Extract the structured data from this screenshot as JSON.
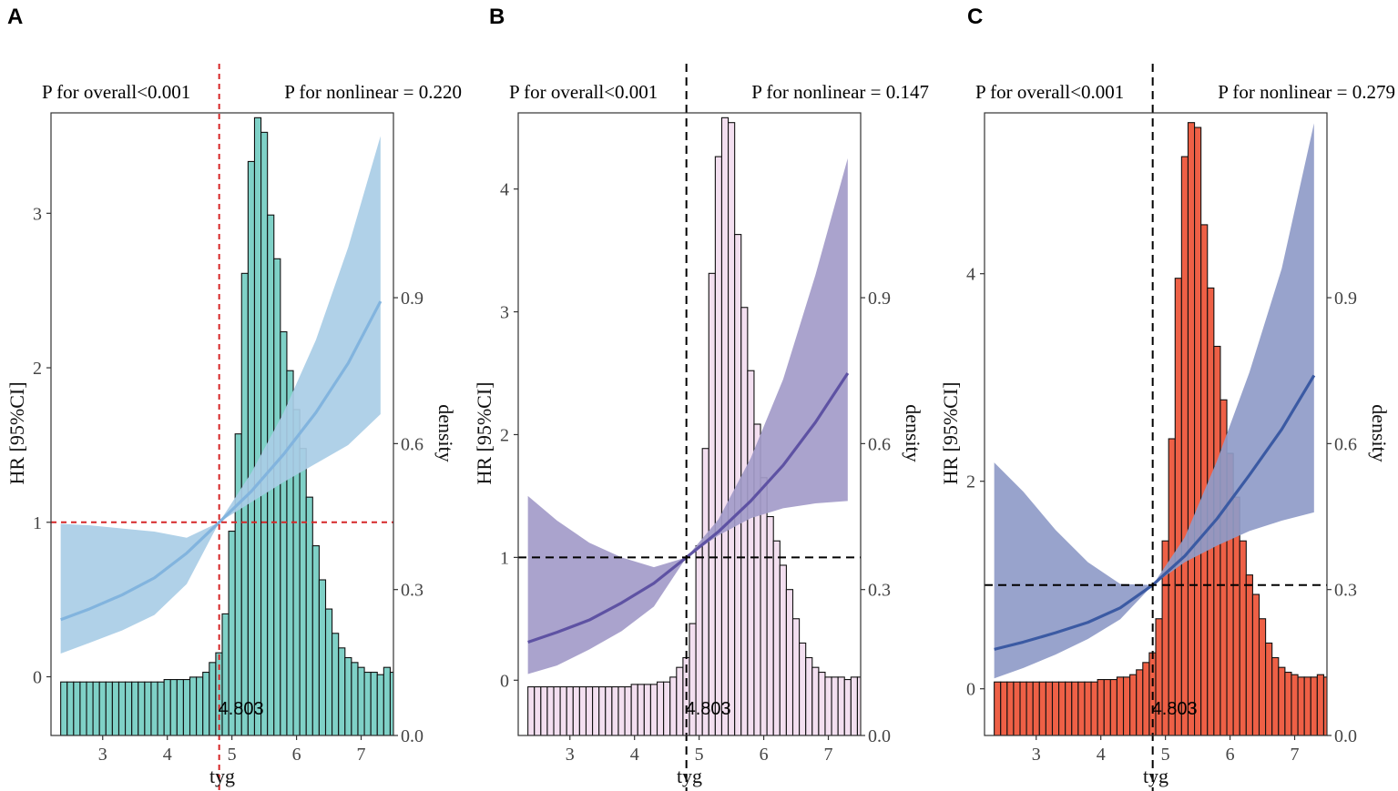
{
  "figure": {
    "shared": {
      "xlabel": "tyg",
      "ylabel": "HR [95%CI]",
      "y2label": "density",
      "x_ticks": [
        3,
        4,
        5,
        6,
        7
      ],
      "x_tick_labels": [
        "3",
        "4",
        "5",
        "6",
        "7"
      ],
      "density_ticks": [
        0.0,
        0.3,
        0.6,
        0.9
      ],
      "density_tick_labels": [
        "0.0",
        "0.3",
        "0.6",
        "0.9"
      ],
      "ref_x": 4.803,
      "ref_x_label": "4.803",
      "ref_hr": 1,
      "xlim": [
        2.2,
        7.5
      ]
    }
  },
  "chart_data": [
    {
      "type": "line",
      "panel": "A",
      "p_overall": "P for overall<0.001",
      "p_nonlinear": "P for nonlinear = 0.220",
      "ylim": [
        -0.38,
        3.65
      ],
      "y_ticks": [
        0,
        1,
        2,
        3
      ],
      "y_tick_labels": [
        "0",
        "1",
        "2",
        "3"
      ],
      "density_ylim": [
        0.0,
        1.28
      ],
      "colors": {
        "hist_fill": "#7fd1c7",
        "band": "#a9cde6",
        "line": "#82b4de",
        "ref": "#d62728"
      },
      "ref_dash": "6,5",
      "hist_x0": 2.35,
      "hist_bin": 0.1,
      "hist_density": [
        0.11,
        0.11,
        0.11,
        0.11,
        0.11,
        0.11,
        0.11,
        0.11,
        0.11,
        0.11,
        0.11,
        0.11,
        0.11,
        0.11,
        0.11,
        0.11,
        0.115,
        0.115,
        0.115,
        0.115,
        0.12,
        0.12,
        0.13,
        0.15,
        0.17,
        0.25,
        0.42,
        0.62,
        0.95,
        1.18,
        1.27,
        1.24,
        1.07,
        0.98,
        0.83,
        0.75,
        0.67,
        0.59,
        0.49,
        0.39,
        0.32,
        0.26,
        0.21,
        0.18,
        0.16,
        0.15,
        0.14,
        0.13,
        0.13,
        0.125,
        0.14,
        0.13,
        0.125,
        0.12,
        0.12,
        0.12,
        0.12,
        0.12,
        0.12,
        0.12,
        0.12
      ],
      "curve": {
        "x": [
          2.35,
          2.8,
          3.3,
          3.8,
          4.3,
          4.803,
          5.3,
          5.8,
          6.3,
          6.8,
          7.3
        ],
        "hr": [
          0.37,
          0.44,
          0.53,
          0.64,
          0.8,
          1.0,
          1.2,
          1.44,
          1.71,
          2.03,
          2.43
        ],
        "lower": [
          0.15,
          0.22,
          0.3,
          0.4,
          0.6,
          1.0,
          1.13,
          1.26,
          1.38,
          1.5,
          1.7
        ],
        "upper": [
          0.99,
          0.98,
          0.96,
          0.94,
          0.9,
          1.0,
          1.32,
          1.71,
          2.18,
          2.78,
          3.5
        ]
      }
    },
    {
      "type": "line",
      "panel": "B",
      "p_overall": "P for overall<0.001",
      "p_nonlinear": "P for nonlinear = 0.147",
      "ylim": [
        -0.45,
        4.62
      ],
      "y_ticks": [
        0,
        1,
        2,
        3,
        4
      ],
      "y_tick_labels": [
        "0",
        "1",
        "2",
        "3",
        "4"
      ],
      "density_ylim": [
        0.0,
        1.28
      ],
      "colors": {
        "hist_fill": "#f3dff0",
        "band": "#a39bc9",
        "line": "#5e52a3",
        "ref": "#000000"
      },
      "ref_dash": "9,6",
      "hist_x0": 2.35,
      "hist_bin": 0.1,
      "hist_density": [
        0.1,
        0.1,
        0.1,
        0.1,
        0.1,
        0.1,
        0.1,
        0.1,
        0.1,
        0.1,
        0.1,
        0.1,
        0.1,
        0.1,
        0.1,
        0.1,
        0.105,
        0.105,
        0.105,
        0.105,
        0.11,
        0.11,
        0.12,
        0.14,
        0.16,
        0.23,
        0.39,
        0.59,
        0.95,
        1.19,
        1.27,
        1.26,
        1.03,
        0.88,
        0.75,
        0.64,
        0.53,
        0.45,
        0.4,
        0.35,
        0.3,
        0.24,
        0.19,
        0.16,
        0.14,
        0.13,
        0.12,
        0.12,
        0.12,
        0.115,
        0.12,
        0.12,
        0.115,
        0.115,
        0.11,
        0.11,
        0.11,
        0.11,
        0.11,
        0.11,
        0.11
      ],
      "curve": {
        "x": [
          2.35,
          2.8,
          3.3,
          3.8,
          4.3,
          4.803,
          5.3,
          5.8,
          6.3,
          6.8,
          7.3
        ],
        "hr": [
          0.31,
          0.39,
          0.49,
          0.63,
          0.79,
          1.0,
          1.21,
          1.46,
          1.75,
          2.1,
          2.5
        ],
        "lower": [
          0.05,
          0.12,
          0.25,
          0.4,
          0.6,
          1.0,
          1.18,
          1.32,
          1.4,
          1.44,
          1.46
        ],
        "upper": [
          1.5,
          1.3,
          1.12,
          1.0,
          0.92,
          1.0,
          1.31,
          1.81,
          2.45,
          3.3,
          4.25
        ]
      }
    },
    {
      "type": "line",
      "panel": "C",
      "p_overall": "P for overall<0.001",
      "p_nonlinear": "P for nonlinear = 0.279",
      "ylim": [
        -0.45,
        5.55
      ],
      "y_ticks": [
        0,
        2,
        4
      ],
      "y_tick_labels": [
        "0",
        "2",
        "4"
      ],
      "density_ylim": [
        0.0,
        1.28
      ],
      "colors": {
        "hist_fill": "#ee6046",
        "band": "#8f9bc8",
        "line": "#3b5aa3",
        "ref": "#000000"
      },
      "ref_dash": "9,6",
      "hist_x0": 2.35,
      "hist_bin": 0.1,
      "hist_density": [
        0.11,
        0.11,
        0.11,
        0.11,
        0.11,
        0.11,
        0.11,
        0.11,
        0.11,
        0.11,
        0.11,
        0.11,
        0.11,
        0.11,
        0.11,
        0.11,
        0.115,
        0.115,
        0.115,
        0.12,
        0.12,
        0.125,
        0.135,
        0.15,
        0.17,
        0.24,
        0.4,
        0.61,
        0.94,
        1.19,
        1.26,
        1.25,
        1.05,
        0.92,
        0.8,
        0.69,
        0.58,
        0.49,
        0.4,
        0.33,
        0.29,
        0.24,
        0.19,
        0.16,
        0.14,
        0.13,
        0.125,
        0.12,
        0.12,
        0.12,
        0.125,
        0.12,
        0.12,
        0.115,
        0.115,
        0.115,
        0.115,
        0.115,
        0.115,
        0.12,
        0.12
      ],
      "curve": {
        "x": [
          2.35,
          2.8,
          3.3,
          3.8,
          4.3,
          4.803,
          5.3,
          5.8,
          6.3,
          6.8,
          7.3
        ],
        "hr": [
          0.38,
          0.45,
          0.54,
          0.64,
          0.78,
          1.0,
          1.28,
          1.64,
          2.06,
          2.5,
          3.02
        ],
        "lower": [
          0.1,
          0.2,
          0.33,
          0.48,
          0.67,
          1.0,
          1.22,
          1.38,
          1.52,
          1.62,
          1.7
        ],
        "upper": [
          2.18,
          1.9,
          1.53,
          1.22,
          1.01,
          1.0,
          1.46,
          2.2,
          3.05,
          4.05,
          5.45
        ]
      }
    }
  ]
}
